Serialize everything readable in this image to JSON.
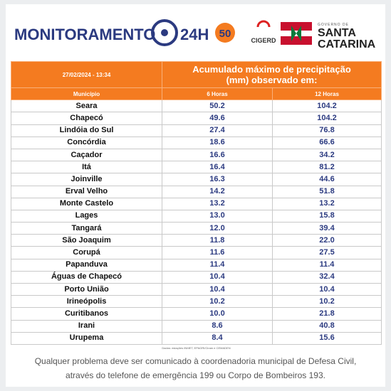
{
  "header": {
    "title": "MONITORAMENTO",
    "title_suffix": "24H",
    "badge": "50",
    "agency": "CIGERD",
    "gov_label": "GOVERNO DE",
    "gov_name_1": "SANTA",
    "gov_name_2": "CATARINA"
  },
  "table": {
    "timestamp": "27/02/2024 - 13:34",
    "title": "Acumulado máximo de precipitação (mm) observado em:",
    "columns": [
      "Município",
      "6 Horas",
      "12 Horas"
    ],
    "rows": [
      [
        "Seara",
        "50.2",
        "104.2"
      ],
      [
        "Chapecó",
        "49.6",
        "104.2"
      ],
      [
        "Lindóia do Sul",
        "27.4",
        "76.8"
      ],
      [
        "Concórdia",
        "18.6",
        "66.6"
      ],
      [
        "Caçador",
        "16.6",
        "34.2"
      ],
      [
        "Itá",
        "16.4",
        "81.2"
      ],
      [
        "Joinville",
        "16.3",
        "44.6"
      ],
      [
        "Erval Velho",
        "14.2",
        "51.8"
      ],
      [
        "Monte Castelo",
        "13.2",
        "13.2"
      ],
      [
        "Lages",
        "13.0",
        "15.8"
      ],
      [
        "Tangará",
        "12.0",
        "39.4"
      ],
      [
        "São Joaquim",
        "11.8",
        "22.0"
      ],
      [
        "Corupá",
        "11.6",
        "27.5"
      ],
      [
        "Papanduva",
        "11.4",
        "11.4"
      ],
      [
        "Águas de Chapecó",
        "10.4",
        "32.4"
      ],
      [
        "Porto União",
        "10.4",
        "10.4"
      ],
      [
        "Irineópolis",
        "10.2",
        "10.2"
      ],
      [
        "Curitibanos",
        "10.0",
        "21.8"
      ],
      [
        "Irani",
        "8.6",
        "40.8"
      ],
      [
        "Urupema",
        "8.4",
        "15.6"
      ]
    ],
    "source": "Dados: estações INMET, EPAGRI/Ciram e CEMADEN"
  },
  "footer": {
    "lines": [
      "Qualquer problema deve ser comunicado à coordenadoria municipal de Defesa Civil,",
      "através do telefone de emergência 199 ou Corpo de Bombeiros 193."
    ]
  }
}
